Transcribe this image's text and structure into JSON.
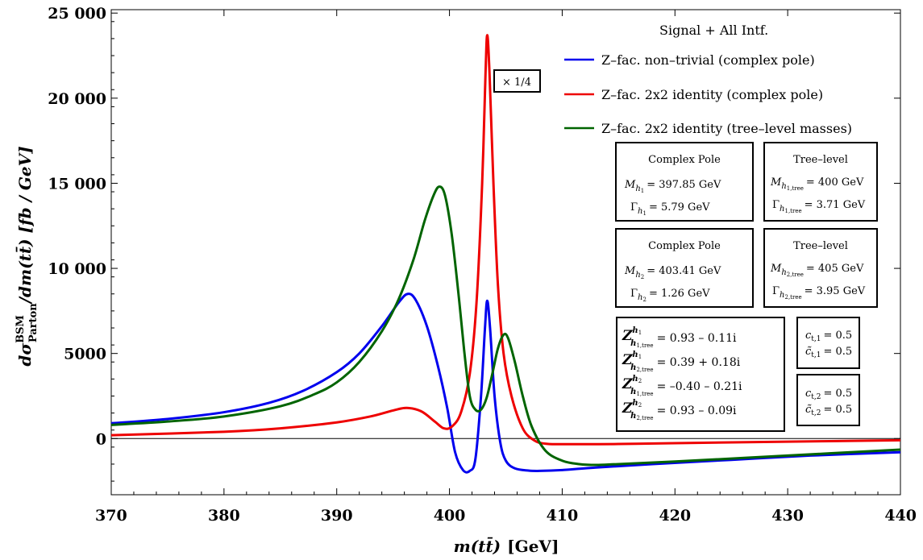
{
  "chart_data": {
    "type": "line",
    "xlabel_main": "m(tt̄)",
    "xlabel_unit": "[GeV]",
    "ylabel_main": "dσ",
    "ylabel_sup": "BSM",
    "ylabel_sub": "Parton",
    "ylabel_rest": "/dm(tt̄) [fb / GeV]",
    "xlim": [
      370,
      440
    ],
    "ylim": [
      -3300,
      25200
    ],
    "x_ticks": [
      370,
      380,
      390,
      400,
      410,
      420,
      430,
      440
    ],
    "x_tick_labels": [
      "370",
      "380",
      "390",
      "400",
      "410",
      "420",
      "430",
      "440"
    ],
    "y_ticks": [
      0,
      5000,
      10000,
      15000,
      20000,
      25000
    ],
    "y_tick_labels": [
      "0",
      "5000",
      "10 000",
      "15 000",
      "20 000",
      "25 000"
    ],
    "legend_title": "Signal + All Intf.",
    "annotation_scale": "× 1/4",
    "series": [
      {
        "name": "Z–fac. non–trivial (complex pole)",
        "color": "#0000ee",
        "points": [
          [
            370,
            900
          ],
          [
            375,
            1150
          ],
          [
            380,
            1550
          ],
          [
            384,
            2100
          ],
          [
            387,
            2800
          ],
          [
            390,
            3900
          ],
          [
            392,
            5000
          ],
          [
            394,
            6600
          ],
          [
            395.5,
            8000
          ],
          [
            396.3,
            8500
          ],
          [
            397,
            8150
          ],
          [
            398,
            6600
          ],
          [
            399,
            4200
          ],
          [
            399.8,
            1800
          ],
          [
            400.5,
            -800
          ],
          [
            401.2,
            -1850
          ],
          [
            401.8,
            -1900
          ],
          [
            402.3,
            -1200
          ],
          [
            402.8,
            2500
          ],
          [
            403.15,
            6500
          ],
          [
            403.35,
            8100
          ],
          [
            403.6,
            6500
          ],
          [
            404,
            2500
          ],
          [
            404.5,
            -200
          ],
          [
            405,
            -1300
          ],
          [
            405.8,
            -1750
          ],
          [
            407,
            -1880
          ],
          [
            408,
            -1900
          ],
          [
            410,
            -1850
          ],
          [
            413,
            -1700
          ],
          [
            418,
            -1500
          ],
          [
            425,
            -1250
          ],
          [
            432,
            -1000
          ],
          [
            440,
            -800
          ]
        ]
      },
      {
        "name": "Z–fac. 2x2 identity (complex pole)",
        "color": "#ee0000",
        "points": [
          [
            370,
            200
          ],
          [
            380,
            400
          ],
          [
            385,
            600
          ],
          [
            390,
            950
          ],
          [
            393,
            1300
          ],
          [
            395,
            1650
          ],
          [
            396.2,
            1800
          ],
          [
            397.5,
            1600
          ],
          [
            398.7,
            1000
          ],
          [
            399.5,
            600
          ],
          [
            400.2,
            700
          ],
          [
            401,
            1500
          ],
          [
            401.8,
            3800
          ],
          [
            402.4,
            8000
          ],
          [
            402.9,
            15000
          ],
          [
            403.2,
            21500
          ],
          [
            403.35,
            23700
          ],
          [
            403.55,
            21500
          ],
          [
            403.9,
            15000
          ],
          [
            404.3,
            9000
          ],
          [
            404.8,
            5000
          ],
          [
            405.5,
            2500
          ],
          [
            406.5,
            600
          ],
          [
            407.5,
            -100
          ],
          [
            408.5,
            -300
          ],
          [
            410,
            -330
          ],
          [
            415,
            -320
          ],
          [
            420,
            -270
          ],
          [
            430,
            -180
          ],
          [
            440,
            -100
          ]
        ]
      },
      {
        "name": "Z–fac. 2x2 identity (tree–level masses)",
        "color": "#006400",
        "points": [
          [
            370,
            800
          ],
          [
            375,
            1000
          ],
          [
            380,
            1300
          ],
          [
            385,
            1900
          ],
          [
            388,
            2600
          ],
          [
            390,
            3300
          ],
          [
            392,
            4500
          ],
          [
            394,
            6300
          ],
          [
            395.5,
            8200
          ],
          [
            396.8,
            10500
          ],
          [
            397.8,
            12800
          ],
          [
            398.6,
            14300
          ],
          [
            399.1,
            14800
          ],
          [
            399.6,
            14300
          ],
          [
            400.2,
            12000
          ],
          [
            400.8,
            8500
          ],
          [
            401.3,
            5200
          ],
          [
            401.8,
            2500
          ],
          [
            402.3,
            1700
          ],
          [
            402.8,
            1700
          ],
          [
            403.3,
            2400
          ],
          [
            403.8,
            3800
          ],
          [
            404.3,
            5300
          ],
          [
            404.8,
            6100
          ],
          [
            405.2,
            5900
          ],
          [
            405.8,
            4500
          ],
          [
            406.5,
            2500
          ],
          [
            407.3,
            700
          ],
          [
            408.5,
            -700
          ],
          [
            410,
            -1300
          ],
          [
            411.5,
            -1500
          ],
          [
            413,
            -1550
          ],
          [
            415,
            -1500
          ],
          [
            420,
            -1350
          ],
          [
            430,
            -1000
          ],
          [
            440,
            -650
          ]
        ]
      }
    ]
  },
  "info_boxes": {
    "h1_complex": {
      "title": "Complex Pole",
      "mass": "M",
      "mass_sub": "h",
      "mass_subsub": "1",
      "mass_val": "= 397.85 GeV",
      "width": "Γ",
      "width_sub": "h",
      "width_subsub": "1",
      "width_val": "= 5.79 GeV"
    },
    "h1_tree": {
      "title": "Tree–level",
      "mass": "M",
      "mass_sub": "h",
      "mass_subsub": "1,tree",
      "mass_val": "= 400 GeV",
      "width": "Γ",
      "width_sub": "h",
      "width_subsub": "1,tree",
      "width_val": "= 3.71 GeV"
    },
    "h2_complex": {
      "title": "Complex Pole",
      "mass": "M",
      "mass_sub": "h",
      "mass_subsub": "2",
      "mass_val": "= 403.41 GeV",
      "width": "Γ",
      "width_sub": "h",
      "width_subsub": "2",
      "width_val": "= 1.26 GeV"
    },
    "h2_tree": {
      "title": "Tree–level",
      "mass": "M",
      "mass_sub": "h",
      "mass_subsub": "2,tree",
      "mass_val": "= 405 GeV",
      "width": "Γ",
      "width_sub": "h",
      "width_subsub": "2,tree",
      "width_val": "= 3.95 GeV"
    }
  },
  "z_factors": [
    {
      "sup": "h",
      "supsub": "1",
      "sub": "h",
      "subsub": "1,tree",
      "value": "= 0.93 – 0.11i"
    },
    {
      "sup": "h",
      "supsub": "1",
      "sub": "h",
      "subsub": "2,tree",
      "value": "= 0.39 + 0.18i"
    },
    {
      "sup": "h",
      "supsub": "2",
      "sub": "h",
      "subsub": "1,tree",
      "value": "= –0.40 – 0.21i"
    },
    {
      "sup": "h",
      "supsub": "2",
      "sub": "h",
      "subsub": "2,tree",
      "value": "= 0.93 – 0.09i"
    }
  ],
  "couplings_1": [
    {
      "sym": "c",
      "sub": "t,1",
      "value": "= 0.5"
    },
    {
      "sym": "c̃",
      "sub": "t,1",
      "value": "= 0.5"
    }
  ],
  "couplings_2": [
    {
      "sym": "c",
      "sub": "t,2",
      "value": "= 0.5"
    },
    {
      "sym": "c̃",
      "sub": "t,2",
      "value": "= 0.5"
    }
  ],
  "z_symbol": "Z"
}
